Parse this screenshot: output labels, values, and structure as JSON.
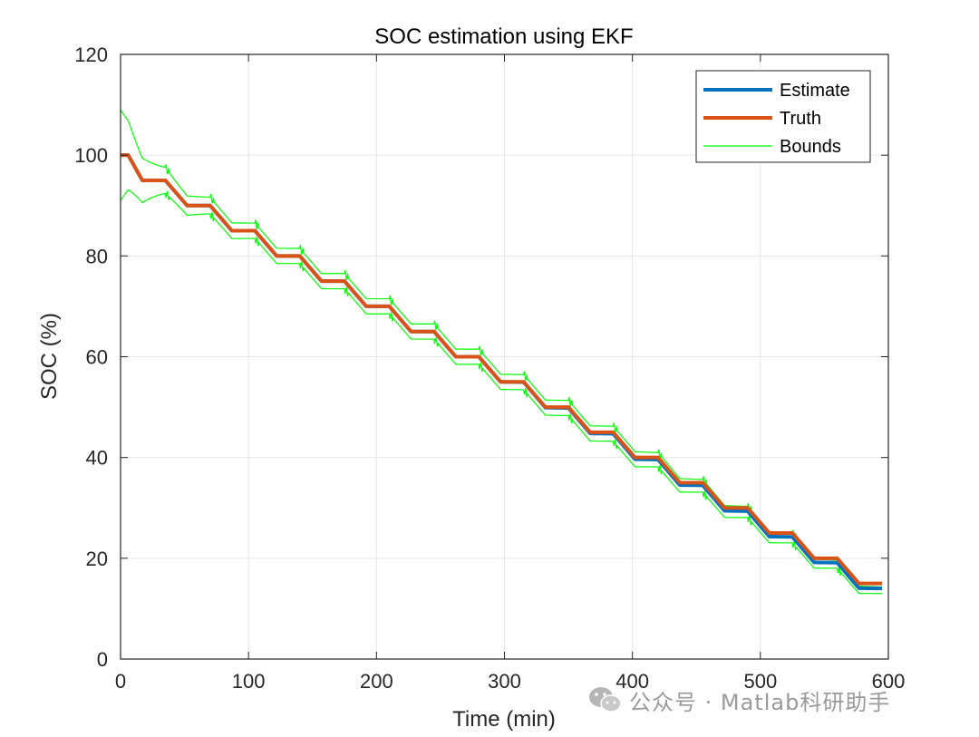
{
  "chart_data": {
    "type": "line",
    "title": "SOC estimation using EKF",
    "xlabel": "Time (min)",
    "ylabel": "SOC (%)",
    "xlim": [
      0,
      600
    ],
    "ylim": [
      0,
      120
    ],
    "xticks": [
      0,
      100,
      200,
      300,
      400,
      500,
      600
    ],
    "yticks": [
      0,
      20,
      40,
      60,
      80,
      100,
      120
    ],
    "grid": true,
    "legend_position": "top-right",
    "step": {
      "start_time": 0,
      "end_time": 595,
      "initial_hold_end": 6,
      "first_drop_end": 17,
      "first_plateau_end": 35,
      "period": 35,
      "drop_duration": 17,
      "step_size": 5,
      "start_value": 100
    },
    "series": [
      {
        "name": "Estimate",
        "color": "#0072BD",
        "values_note": "tracks Truth; ends at 8.5",
        "end_value": 8.5
      },
      {
        "name": "Truth",
        "color": "#D95319",
        "end_value": 9.5
      },
      {
        "name": "Bounds",
        "color": "#00FF00",
        "upper_start": 109,
        "lower_start": 91,
        "upper_end": 9.8,
        "lower_end": 7.5,
        "initial_halfwidth": 9,
        "steady_halfwidth": 1.5
      }
    ]
  },
  "watermark": {
    "icon": "wechat-icon",
    "text": "公众号 · Matlab科研助手"
  }
}
